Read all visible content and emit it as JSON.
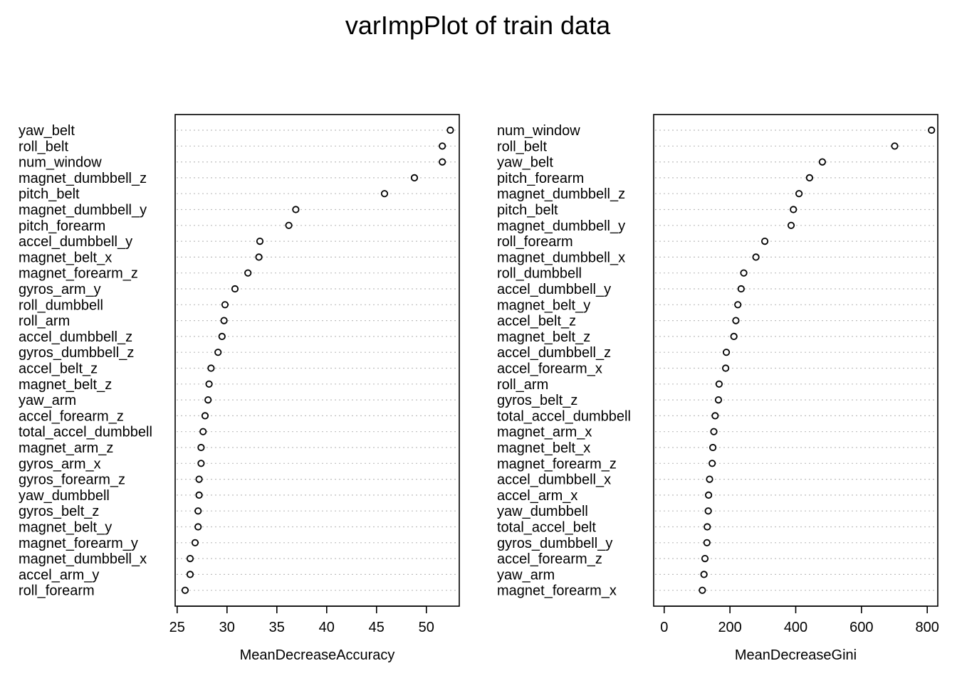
{
  "title": "varImpPlot of train data",
  "chart_data": [
    {
      "type": "scatter",
      "xlabel": "MeanDecreaseAccuracy",
      "xlim": [
        24.8,
        53.3
      ],
      "xticks": [
        25,
        30,
        35,
        40,
        45,
        50
      ],
      "grid": "dotted-horizontal",
      "variables": [
        "yaw_belt",
        "roll_belt",
        "num_window",
        "magnet_dumbbell_z",
        "pitch_belt",
        "magnet_dumbbell_y",
        "pitch_forearm",
        "accel_dumbbell_y",
        "magnet_belt_x",
        "magnet_forearm_z",
        "gyros_arm_y",
        "roll_dumbbell",
        "roll_arm",
        "accel_dumbbell_z",
        "gyros_dumbbell_z",
        "accel_belt_z",
        "magnet_belt_z",
        "yaw_arm",
        "accel_forearm_z",
        "total_accel_dumbbell",
        "magnet_arm_z",
        "gyros_arm_x",
        "gyros_forearm_z",
        "yaw_dumbbell",
        "gyros_belt_z",
        "magnet_belt_y",
        "magnet_forearm_y",
        "magnet_dumbbell_x",
        "accel_arm_y",
        "roll_forearm"
      ],
      "values": [
        52.4,
        51.6,
        51.6,
        48.8,
        45.8,
        36.9,
        36.2,
        33.3,
        33.2,
        32.1,
        30.8,
        29.8,
        29.7,
        29.5,
        29.1,
        28.4,
        28.2,
        28.1,
        27.8,
        27.6,
        27.4,
        27.4,
        27.2,
        27.2,
        27.1,
        27.1,
        26.8,
        26.3,
        26.3,
        25.8
      ]
    },
    {
      "type": "scatter",
      "xlabel": "MeanDecreaseGini",
      "xlim": [
        -32,
        832
      ],
      "xticks": [
        0,
        200,
        400,
        600,
        800
      ],
      "grid": "dotted-horizontal",
      "variables": [
        "num_window",
        "roll_belt",
        "yaw_belt",
        "pitch_forearm",
        "magnet_dumbbell_z",
        "pitch_belt",
        "magnet_dumbbell_y",
        "roll_forearm",
        "magnet_dumbbell_x",
        "roll_dumbbell",
        "accel_dumbbell_y",
        "magnet_belt_y",
        "accel_belt_z",
        "magnet_belt_z",
        "accel_dumbbell_z",
        "accel_forearm_x",
        "roll_arm",
        "gyros_belt_z",
        "total_accel_dumbbell",
        "magnet_arm_x",
        "magnet_belt_x",
        "magnet_forearm_z",
        "accel_dumbbell_x",
        "accel_arm_x",
        "yaw_dumbbell",
        "total_accel_belt",
        "gyros_dumbbell_y",
        "accel_forearm_z",
        "yaw_arm",
        "magnet_forearm_x"
      ],
      "values": [
        813,
        701,
        481,
        442,
        410,
        393,
        386,
        306,
        279,
        242,
        234,
        224,
        218,
        212,
        189,
        187,
        167,
        165,
        155,
        151,
        148,
        146,
        138,
        135,
        134,
        131,
        130,
        124,
        121,
        116
      ]
    }
  ]
}
